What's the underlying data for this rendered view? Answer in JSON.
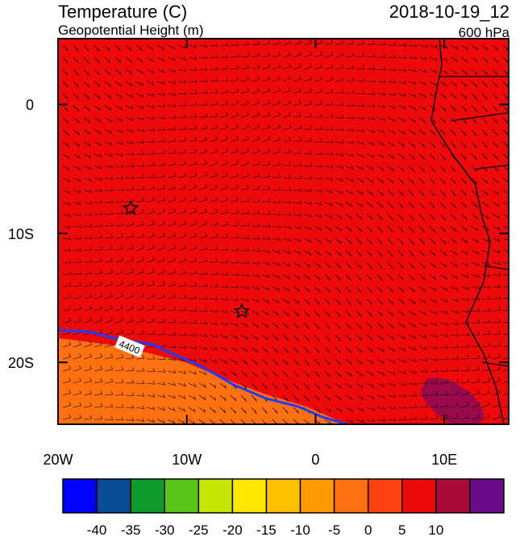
{
  "header": {
    "title": "Temperature (C)",
    "subtitle": "Geopotential Height (m)",
    "time": "2018-10-19_12",
    "level": "600 hPa"
  },
  "map": {
    "lon_range": [
      -20,
      15
    ],
    "lat_range": [
      -24.8,
      5.1
    ],
    "lon_ticks": [
      {
        "value": -20,
        "label": "20W"
      },
      {
        "value": -10,
        "label": "10W"
      },
      {
        "value": 0,
        "label": "0"
      },
      {
        "value": 10,
        "label": "10E"
      }
    ],
    "lat_ticks": [
      {
        "value": 0,
        "label": "0"
      },
      {
        "value": -10,
        "label": "10S"
      },
      {
        "value": -20,
        "label": "20S"
      }
    ],
    "contour_label": "4400"
  },
  "colorbar": {
    "colors": [
      "#0000ff",
      "#0a4d96",
      "#0e9a2c",
      "#5ac41a",
      "#c4e600",
      "#ffe800",
      "#ffc000",
      "#ff9a00",
      "#ff7010",
      "#ff4010",
      "#ee0a0a",
      "#aa0a3a",
      "#6a0a8a"
    ],
    "labels": [
      -40,
      -35,
      -30,
      -25,
      -20,
      -15,
      -10,
      -5,
      0,
      5,
      10
    ]
  }
}
